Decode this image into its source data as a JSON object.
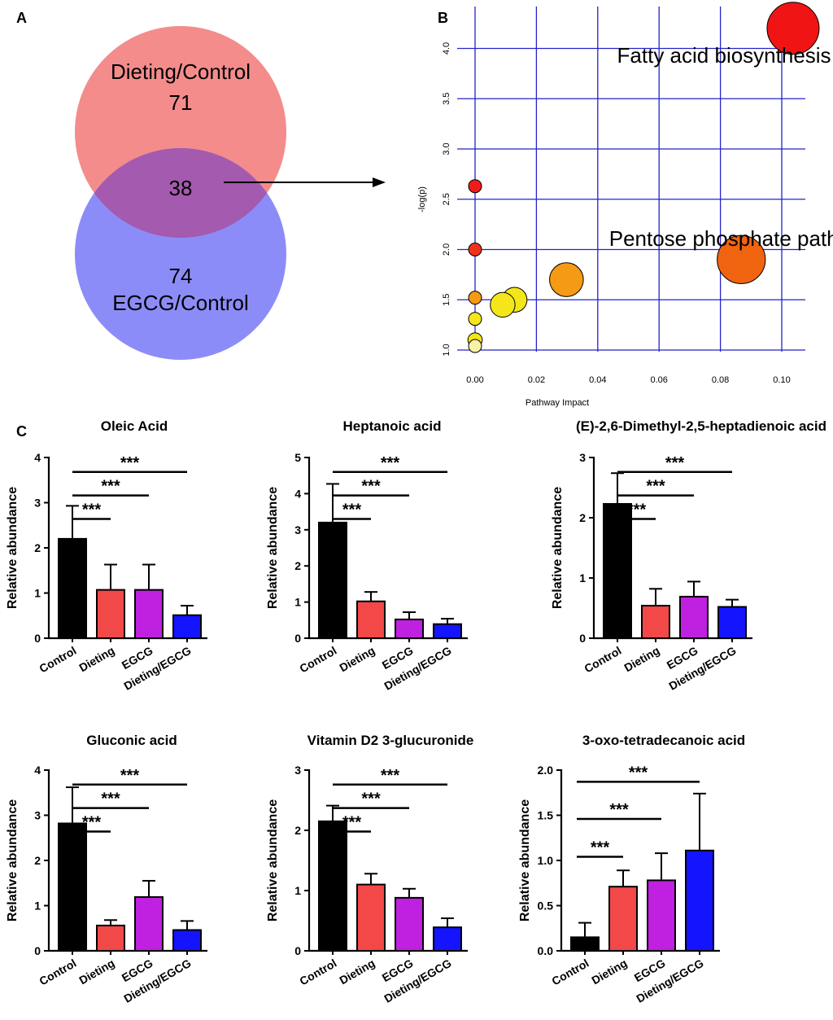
{
  "panel_labels": {
    "a": "A",
    "b": "B",
    "c": "C"
  },
  "chart_data": [
    {
      "id": "venn",
      "type": "venn",
      "sets": [
        {
          "name": "Dieting/Control",
          "unique_count": "71",
          "color": "#f48c8c"
        },
        {
          "name": "EGCG/Control",
          "unique_count": "74",
          "color": "#8c8cf8"
        }
      ],
      "overlap_count": "38",
      "overlap_color": "#a45aae"
    },
    {
      "id": "pathway",
      "type": "scatter",
      "xlabel": "Pathway Impact",
      "ylabel": "-log(p)",
      "xlim": [
        -0.002,
        0.105
      ],
      "ylim": [
        0.97,
        4.2
      ],
      "xticks": [
        0.0,
        0.02,
        0.04,
        0.06,
        0.08,
        0.1
      ],
      "xtick_labels": [
        "0.00",
        "0.02",
        "0.04",
        "0.06",
        "0.08",
        "0.10"
      ],
      "yticks": [
        1.0,
        1.5,
        2.0,
        2.5,
        3.0,
        3.5,
        4.0
      ],
      "ytick_labels": [
        "1.0",
        "1.5",
        "2.0",
        "2.5",
        "3.0",
        "3.5",
        "4.0"
      ],
      "grid_color": "#2424c8",
      "points": [
        {
          "x": 0.0,
          "y": 2.63,
          "size": 1.0,
          "color": "#f01c1c"
        },
        {
          "x": 0.0,
          "y": 2.0,
          "size": 1.0,
          "color": "#f0321c"
        },
        {
          "x": 0.0,
          "y": 1.52,
          "size": 1.0,
          "color": "#f59a14"
        },
        {
          "x": 0.0,
          "y": 1.31,
          "size": 1.0,
          "color": "#f5e61a"
        },
        {
          "x": 0.0,
          "y": 1.1,
          "size": 1.1,
          "color": "#f5e61a"
        },
        {
          "x": 0.0,
          "y": 1.04,
          "size": 1.0,
          "color": "#f7f2a8"
        },
        {
          "x": 0.0129,
          "y": 1.5,
          "size": 1.9,
          "color": "#f5e61a"
        },
        {
          "x": 0.009,
          "y": 1.45,
          "size": 1.9,
          "color": "#f5e61a"
        },
        {
          "x": 0.0298,
          "y": 1.7,
          "size": 2.6,
          "color": "#f59a14"
        },
        {
          "x": 0.0868,
          "y": 1.9,
          "size": 3.7,
          "color": "#f06410"
        },
        {
          "x": 0.1037,
          "y": 4.2,
          "size": 4.0,
          "color": "#f01414"
        }
      ],
      "annotations": [
        {
          "text": "Fatty acid biosynthesis",
          "x": 0.0463,
          "y": 3.93
        },
        {
          "text": "Pentose phosphate pathway",
          "x": 0.0437,
          "y": 2.11
        }
      ]
    },
    {
      "id": "oleic",
      "type": "bar",
      "title": "Oleic Acid",
      "ylabel": "Relative abundance",
      "ylim": [
        0,
        4
      ],
      "yticks": [
        0,
        1,
        2,
        3,
        4
      ],
      "ytick_labels": [
        "0",
        "1",
        "2",
        "3",
        "4"
      ],
      "categories": [
        "Control",
        "Dieting",
        "EGCG",
        "Dieting/EGCG"
      ],
      "values": [
        2.2,
        1.07,
        1.07,
        0.51
      ],
      "errors": [
        0.73,
        0.56,
        0.56,
        0.21
      ],
      "colors": [
        "#000000",
        "#f24848",
        "#c020e0",
        "#1414ff"
      ],
      "significance": [
        {
          "from": 0,
          "to": 1,
          "label": "***"
        },
        {
          "from": 0,
          "to": 2,
          "label": "***"
        },
        {
          "from": 0,
          "to": 3,
          "label": "***"
        }
      ]
    },
    {
      "id": "heptanoic",
      "type": "bar",
      "title": "Heptanoic acid",
      "ylabel": "Relative abundance",
      "ylim": [
        0,
        5
      ],
      "yticks": [
        0,
        1,
        2,
        3,
        4,
        5
      ],
      "ytick_labels": [
        "0",
        "1",
        "2",
        "3",
        "4",
        "5"
      ],
      "categories": [
        "Control",
        "Dieting",
        "EGCG",
        "Dieting/EGCG"
      ],
      "values": [
        3.2,
        1.02,
        0.52,
        0.39
      ],
      "errors": [
        1.07,
        0.26,
        0.2,
        0.15
      ],
      "colors": [
        "#000000",
        "#f24848",
        "#c020e0",
        "#1414ff"
      ],
      "significance": [
        {
          "from": 0,
          "to": 1,
          "label": "***"
        },
        {
          "from": 0,
          "to": 2,
          "label": "***"
        },
        {
          "from": 0,
          "to": 3,
          "label": "***"
        }
      ]
    },
    {
      "id": "dimethyl",
      "type": "bar",
      "title": "(E)-2,6-Dimethyl-2,5-heptadienoic acid",
      "ylabel": "Relative abundance",
      "ylim": [
        0,
        3
      ],
      "yticks": [
        0,
        1,
        2,
        3
      ],
      "ytick_labels": [
        "0",
        "1",
        "2",
        "3"
      ],
      "categories": [
        "Control",
        "Dieting",
        "EGCG",
        "Dieting/EGCG"
      ],
      "values": [
        2.23,
        0.54,
        0.69,
        0.52
      ],
      "errors": [
        0.51,
        0.28,
        0.25,
        0.12
      ],
      "colors": [
        "#000000",
        "#f24848",
        "#c020e0",
        "#1414ff"
      ],
      "significance": [
        {
          "from": 0,
          "to": 1,
          "label": "***"
        },
        {
          "from": 0,
          "to": 2,
          "label": "***"
        },
        {
          "from": 0,
          "to": 3,
          "label": "***"
        }
      ]
    },
    {
      "id": "gluconic",
      "type": "bar",
      "title": "Gluconic acid",
      "ylabel": "Relative abundance",
      "ylim": [
        0,
        4
      ],
      "yticks": [
        0,
        1,
        2,
        3,
        4
      ],
      "ytick_labels": [
        "0",
        "1",
        "2",
        "3",
        "4"
      ],
      "categories": [
        "Control",
        "Dieting",
        "EGCG",
        "Dieting/EGCG"
      ],
      "values": [
        2.82,
        0.56,
        1.19,
        0.46
      ],
      "errors": [
        0.8,
        0.12,
        0.36,
        0.2
      ],
      "colors": [
        "#000000",
        "#f24848",
        "#c020e0",
        "#1414ff"
      ],
      "significance": [
        {
          "from": 0,
          "to": 1,
          "label": "***"
        },
        {
          "from": 0,
          "to": 2,
          "label": "***"
        },
        {
          "from": 0,
          "to": 3,
          "label": "***"
        }
      ]
    },
    {
      "id": "vitd2",
      "type": "bar",
      "title": "Vitamin D2 3-glucuronide",
      "ylabel": "Relative abundance",
      "ylim": [
        0,
        3
      ],
      "yticks": [
        0,
        1,
        2,
        3
      ],
      "ytick_labels": [
        "0",
        "1",
        "2",
        "3"
      ],
      "categories": [
        "Control",
        "Dieting",
        "EGCG",
        "Dieting/EGCG"
      ],
      "values": [
        2.15,
        1.1,
        0.88,
        0.39
      ],
      "errors": [
        0.26,
        0.18,
        0.15,
        0.15
      ],
      "colors": [
        "#000000",
        "#f24848",
        "#c020e0",
        "#1414ff"
      ],
      "significance": [
        {
          "from": 0,
          "to": 1,
          "label": "***"
        },
        {
          "from": 0,
          "to": 2,
          "label": "***"
        },
        {
          "from": 0,
          "to": 3,
          "label": "***"
        }
      ]
    },
    {
      "id": "oxotetra",
      "type": "bar",
      "title": "3-oxo-tetradecanoic acid",
      "ylabel": "Relative abundance",
      "ylim": [
        0,
        2.0
      ],
      "yticks": [
        0,
        0.5,
        1.0,
        1.5,
        2.0
      ],
      "ytick_labels": [
        "0.0",
        "0.5",
        "1.0",
        "1.5",
        "2.0"
      ],
      "categories": [
        "Control",
        "Dieting",
        "EGCG",
        "Dieting/EGCG"
      ],
      "values": [
        0.15,
        0.71,
        0.78,
        1.11
      ],
      "errors": [
        0.16,
        0.18,
        0.3,
        0.63
      ],
      "colors": [
        "#000000",
        "#f24848",
        "#c020e0",
        "#1414ff"
      ],
      "significance": [
        {
          "from": 0,
          "to": 1,
          "label": "***"
        },
        {
          "from": 0,
          "to": 2,
          "label": "***"
        },
        {
          "from": 0,
          "to": 3,
          "label": "***"
        }
      ]
    }
  ]
}
